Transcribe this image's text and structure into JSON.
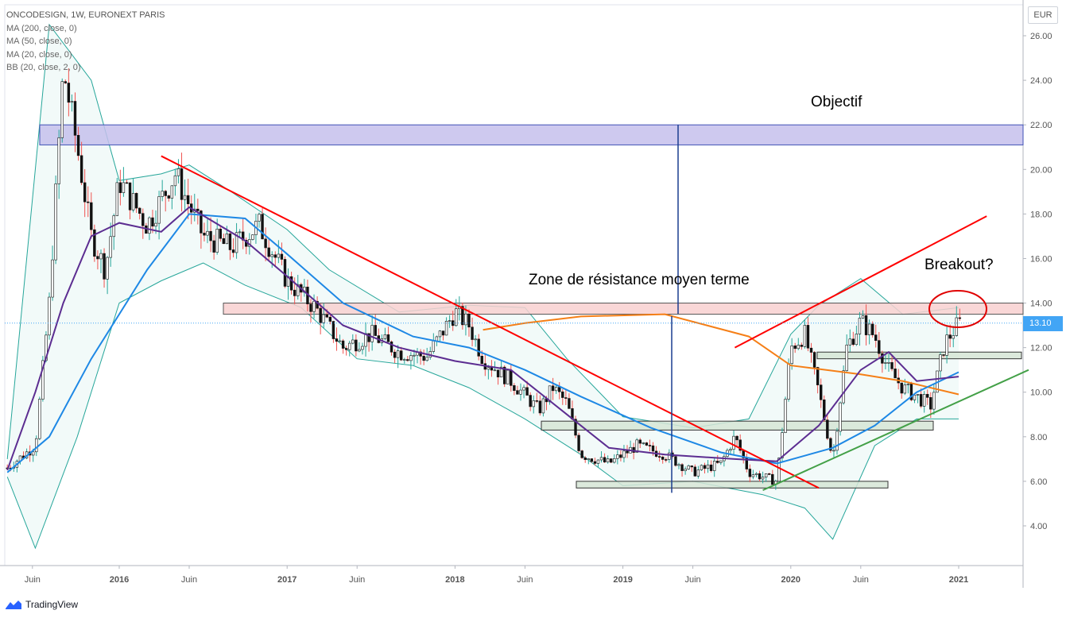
{
  "header": {
    "symbol": "ONCODESIGN, 1W, EURONEXT PARIS",
    "indicators": [
      "MA (200, close, 0)",
      "MA (50, close, 0)",
      "MA (20, close, 0)",
      "BB (20, close, 2, 0)"
    ]
  },
  "currency_label": "EUR",
  "last_price_label": "13.10",
  "branding": "TradingView",
  "annotations": {
    "target": "Objectif",
    "resistance": "Zone de résistance moyen terme",
    "breakout": "Breakout?"
  },
  "colors": {
    "candle_up": "#26a69a",
    "candle_down": "#ef5350",
    "ma200": "#f57f17",
    "ma50": "#1e88e5",
    "ma20": "#5c2d91",
    "bollinger": "#26a69a",
    "trendline_red": "#ff0000",
    "trendline_green": "#43a047",
    "target_zone": "#c5c0ec",
    "resistance_zone": "#f8d0d0",
    "support_zone": "#d6e5d6",
    "last_price": "#42a5f5"
  },
  "chart_data": {
    "type": "candlestick",
    "title": "ONCODESIGN, 1W, EURONEXT PARIS",
    "x_ticks": [
      "Juin",
      "2016",
      "Juin",
      "2017",
      "Juin",
      "2018",
      "Juin",
      "2019",
      "Juin",
      "2020",
      "Juin",
      "2021"
    ],
    "y_ticks": [
      "4.00",
      "6.00",
      "8.00",
      "10.00",
      "12.00",
      "14.00",
      "16.00",
      "18.00",
      "20.00",
      "22.00",
      "24.00",
      "26.00"
    ],
    "ylim": [
      2.3,
      27.0
    ],
    "xlim": [
      "2015-05",
      "2021-06"
    ],
    "last_price": 13.1,
    "price_path": [
      [
        "2015-05",
        6.6
      ],
      [
        "2015-07",
        7.6
      ],
      [
        "2015-08",
        14.0
      ],
      [
        "2015-09",
        24.5
      ],
      [
        "2015-10",
        21.0
      ],
      [
        "2015-11",
        17.0
      ],
      [
        "2015-12",
        15.5
      ],
      [
        "2016-01",
        19.5
      ],
      [
        "2016-03",
        17.5
      ],
      [
        "2016-05",
        19.8
      ],
      [
        "2016-07",
        17.0
      ],
      [
        "2016-09",
        16.5
      ],
      [
        "2016-11",
        17.5
      ],
      [
        "2017-01",
        15.0
      ],
      [
        "2017-03",
        13.8
      ],
      [
        "2017-05",
        12.0
      ],
      [
        "2017-07",
        12.6
      ],
      [
        "2017-09",
        11.8
      ],
      [
        "2017-11",
        11.6
      ],
      [
        "2018-01",
        13.6
      ],
      [
        "2018-02",
        13.0
      ],
      [
        "2018-03",
        11.5
      ],
      [
        "2018-05",
        10.5
      ],
      [
        "2018-07",
        9.2
      ],
      [
        "2018-08",
        10.2
      ],
      [
        "2018-09",
        9.5
      ],
      [
        "2018-10",
        7.2
      ],
      [
        "2018-12",
        6.8
      ],
      [
        "2019-02",
        7.6
      ],
      [
        "2019-04",
        7.2
      ],
      [
        "2019-06",
        6.4
      ],
      [
        "2019-08",
        6.8
      ],
      [
        "2019-09",
        8.0
      ],
      [
        "2019-10",
        6.4
      ],
      [
        "2019-12",
        6.0
      ],
      [
        "2020-01",
        12.0
      ],
      [
        "2020-02",
        12.6
      ],
      [
        "2020-03",
        10.0
      ],
      [
        "2020-04",
        7.0
      ],
      [
        "2020-05",
        12.0
      ],
      [
        "2020-06",
        13.2
      ],
      [
        "2020-07",
        12.5
      ],
      [
        "2020-08",
        11.0
      ],
      [
        "2020-09",
        10.2
      ],
      [
        "2020-11",
        9.4
      ],
      [
        "2020-12",
        12.2
      ],
      [
        "2021-01",
        13.1
      ]
    ],
    "ma200": [
      [
        "2018-03",
        12.8
      ],
      [
        "2018-06",
        13.1
      ],
      [
        "2018-10",
        13.4
      ],
      [
        "2019-04",
        13.5
      ],
      [
        "2019-10",
        12.5
      ],
      [
        "2020-01",
        11.2
      ],
      [
        "2020-06",
        10.8
      ],
      [
        "2020-09",
        10.5
      ],
      [
        "2021-01",
        9.9
      ]
    ],
    "ma50": [
      [
        "2015-05",
        6.4
      ],
      [
        "2015-08",
        8.0
      ],
      [
        "2015-11",
        11.5
      ],
      [
        "2016-03",
        15.5
      ],
      [
        "2016-06",
        18.0
      ],
      [
        "2016-10",
        17.8
      ],
      [
        "2017-01",
        16.2
      ],
      [
        "2017-05",
        14.0
      ],
      [
        "2017-10",
        12.5
      ],
      [
        "2018-02",
        12.0
      ],
      [
        "2018-06",
        11.0
      ],
      [
        "2018-10",
        9.8
      ],
      [
        "2019-03",
        8.4
      ],
      [
        "2019-08",
        7.3
      ],
      [
        "2019-12",
        6.8
      ],
      [
        "2020-04",
        7.5
      ],
      [
        "2020-07",
        8.5
      ],
      [
        "2020-10",
        10.0
      ],
      [
        "2021-01",
        10.9
      ]
    ],
    "ma20": [
      [
        "2015-05",
        6.5
      ],
      [
        "2015-07",
        10.0
      ],
      [
        "2015-09",
        14.0
      ],
      [
        "2015-11",
        17.0
      ],
      [
        "2016-01",
        17.6
      ],
      [
        "2016-04",
        17.2
      ],
      [
        "2016-06",
        18.3
      ],
      [
        "2016-10",
        16.8
      ],
      [
        "2017-01",
        15.2
      ],
      [
        "2017-05",
        13.0
      ],
      [
        "2017-09",
        12.0
      ],
      [
        "2018-01",
        11.4
      ],
      [
        "2018-05",
        11.0
      ],
      [
        "2018-09",
        9.0
      ],
      [
        "2018-12",
        7.5
      ],
      [
        "2019-04",
        7.2
      ],
      [
        "2019-09",
        7.0
      ],
      [
        "2019-12",
        6.9
      ],
      [
        "2020-03",
        8.5
      ],
      [
        "2020-06",
        11.0
      ],
      [
        "2020-08",
        11.8
      ],
      [
        "2020-10",
        10.5
      ],
      [
        "2021-01",
        10.7
      ]
    ],
    "bollinger_upper": [
      [
        "2015-05",
        7.0
      ],
      [
        "2015-08",
        26.5
      ],
      [
        "2015-11",
        24.0
      ],
      [
        "2016-01",
        19.5
      ],
      [
        "2016-04",
        19.8
      ],
      [
        "2016-06",
        20.2
      ],
      [
        "2016-09",
        19.0
      ],
      [
        "2017-01",
        17.3
      ],
      [
        "2017-04",
        15.5
      ],
      [
        "2017-09",
        13.6
      ],
      [
        "2018-02",
        13.9
      ],
      [
        "2018-06",
        13.8
      ],
      [
        "2018-09",
        11.5
      ],
      [
        "2019-01",
        8.9
      ],
      [
        "2019-06",
        8.4
      ],
      [
        "2019-10",
        8.8
      ],
      [
        "2020-01",
        12.6
      ],
      [
        "2020-03",
        13.9
      ],
      [
        "2020-06",
        15.1
      ],
      [
        "2020-09",
        13.5
      ],
      [
        "2021-01",
        13.8
      ]
    ],
    "bollinger_lower": [
      [
        "2015-05",
        6.2
      ],
      [
        "2015-07",
        3.0
      ],
      [
        "2015-10",
        8.0
      ],
      [
        "2016-01",
        14.0
      ],
      [
        "2016-04",
        15.0
      ],
      [
        "2016-07",
        15.8
      ],
      [
        "2016-10",
        14.8
      ],
      [
        "2017-02",
        13.8
      ],
      [
        "2017-06",
        11.5
      ],
      [
        "2017-10",
        11.2
      ],
      [
        "2018-02",
        10.2
      ],
      [
        "2018-06",
        8.8
      ],
      [
        "2018-10",
        7.2
      ],
      [
        "2019-01",
        5.8
      ],
      [
        "2019-06",
        6.0
      ],
      [
        "2019-11",
        5.4
      ],
      [
        "2020-02",
        4.8
      ],
      [
        "2020-04",
        3.4
      ],
      [
        "2020-07",
        7.6
      ],
      [
        "2020-10",
        8.8
      ],
      [
        "2021-01",
        8.8
      ]
    ],
    "zones": [
      {
        "name": "Objectif",
        "from": "2015-06",
        "to": "2021-06",
        "y": [
          21.1,
          22.0
        ]
      },
      {
        "name": "Zone de résistance moyen terme",
        "from": "2016-10",
        "to": "2021-06",
        "y": [
          13.5,
          14.0
        ]
      },
      {
        "name": "support_1",
        "from": "2020-05",
        "to": "2021-06",
        "y": [
          11.5,
          11.8
        ]
      },
      {
        "name": "support_2",
        "from": "2018-07",
        "to": "2020-11",
        "y": [
          8.3,
          8.7
        ]
      },
      {
        "name": "support_3",
        "from": "2018-10",
        "to": "2020-07",
        "y": [
          5.7,
          6.0
        ]
      }
    ],
    "trendlines": [
      {
        "name": "downtrend",
        "color": "red",
        "from": [
          "2016-04",
          20.6
        ],
        "to": [
          "2020-03",
          5.7
        ]
      },
      {
        "name": "uptrend_channel",
        "color": "red",
        "from": [
          "2019-09",
          12.0
        ],
        "to": [
          "2021-03",
          17.9
        ]
      },
      {
        "name": "uptrend_support",
        "color": "green",
        "from": [
          "2019-11",
          5.6
        ],
        "to": [
          "2021-06",
          11.0
        ]
      }
    ],
    "measure": {
      "x": "2019-04",
      "from": 5.7,
      "to": 22.0,
      "mid": 13.7
    }
  }
}
